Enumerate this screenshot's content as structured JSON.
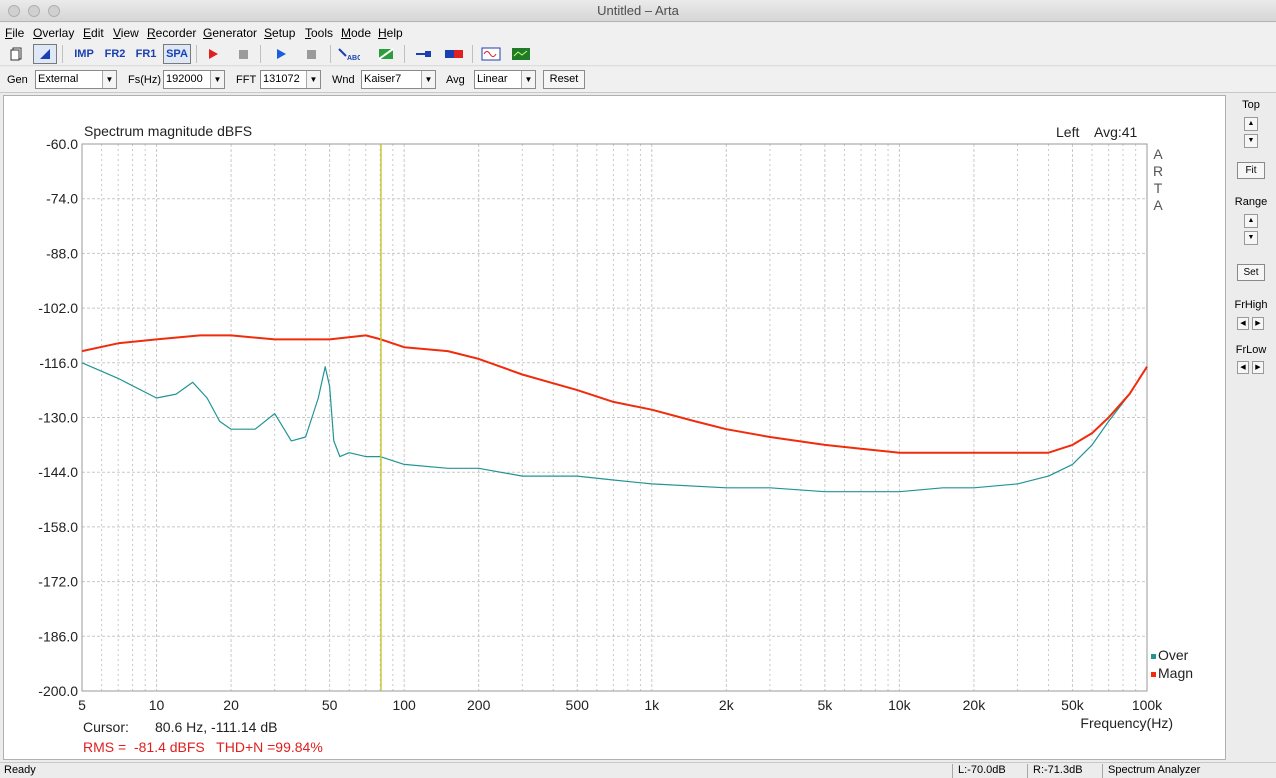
{
  "window": {
    "title": "Untitled – Arta"
  },
  "menu": [
    "File",
    "Overlay",
    "Edit",
    "View",
    "Recorder",
    "Generator",
    "Setup",
    "Tools",
    "Mode",
    "Help"
  ],
  "toolbar": {
    "buttons": [
      {
        "name": "new-file-button",
        "label": "",
        "icon": "page-icon"
      },
      {
        "name": "mode-button",
        "label": "",
        "icon": "flag-icon"
      },
      {
        "name": "imp-mode-button",
        "label": "IMP"
      },
      {
        "name": "fr2-mode-button",
        "label": "FR2"
      },
      {
        "name": "fr1-mode-button",
        "label": "FR1"
      },
      {
        "name": "spa-mode-button",
        "label": "SPA"
      }
    ]
  },
  "options": {
    "gen_label": "Gen",
    "gen_value": "External",
    "fs_label": "Fs(Hz)",
    "fs_value": "192000",
    "fft_label": "FFT",
    "fft_value": "131072",
    "wnd_label": "Wnd",
    "wnd_value": "Kaiser7",
    "avg_label": "Avg",
    "avg_value": "Linear",
    "reset_label": "Reset"
  },
  "plot": {
    "title": "Spectrum magnitude dBFS",
    "channel": "Left",
    "avg": "Avg:41",
    "watermark": [
      "A",
      "R",
      "T",
      "A"
    ],
    "cursor_label": "Cursor:",
    "cursor_value": "80.6 Hz, -111.14 dB",
    "rms_line": "RMS =  -81.4 dBFS   THD+N =99.84%",
    "colors": {
      "over": "#229494",
      "magn": "#f02c0c",
      "cursor": "#c8c832",
      "grid": "#c8c8c8"
    }
  },
  "chart_data": {
    "type": "line",
    "title": "Spectrum magnitude dBFS",
    "xlabel": "Frequency(Hz)",
    "ylabel": "",
    "xscale": "log",
    "xlim": [
      5,
      100000
    ],
    "ylim": [
      -200,
      -60
    ],
    "x_tick_labels": [
      "5",
      "10",
      "20",
      "50",
      "100",
      "200",
      "500",
      "1k",
      "2k",
      "5k",
      "10k",
      "20k",
      "50k",
      "100k"
    ],
    "x_ticks": [
      5,
      10,
      20,
      50,
      100,
      200,
      500,
      1000,
      2000,
      5000,
      10000,
      20000,
      50000,
      100000
    ],
    "y_tick_labels": [
      "-60.0",
      "-74.0",
      "-88.0",
      "-102.0",
      "-116.0",
      "-130.0",
      "-144.0",
      "-158.0",
      "-172.0",
      "-186.0",
      "-200.0"
    ],
    "y_ticks": [
      -60,
      -74,
      -88,
      -102,
      -116,
      -130,
      -144,
      -158,
      -172,
      -186,
      -200
    ],
    "grid": true,
    "legend_position": "bottom-right",
    "cursor_hz": 80.6,
    "series": [
      {
        "name": "Over",
        "color": "#229494",
        "x": [
          5,
          7,
          10,
          12,
          14,
          16,
          18,
          20,
          25,
          30,
          35,
          40,
          45,
          48,
          50,
          52,
          55,
          60,
          70,
          80,
          100,
          150,
          200,
          300,
          500,
          700,
          1000,
          2000,
          3000,
          5000,
          7000,
          10000,
          15000,
          20000,
          30000,
          40000,
          50000,
          60000,
          70000,
          85000,
          100000
        ],
        "y": [
          -116,
          -120,
          -125,
          -124,
          -121,
          -125,
          -131,
          -133,
          -133,
          -129,
          -136,
          -135,
          -125,
          -117,
          -122,
          -136,
          -140,
          -139,
          -140,
          -140,
          -142,
          -143,
          -143,
          -145,
          -145,
          -146,
          -147,
          -148,
          -148,
          -149,
          -149,
          -149,
          -148,
          -148,
          -147,
          -145,
          -142,
          -137,
          -131,
          -124,
          -117
        ]
      },
      {
        "name": "Magn",
        "color": "#f02c0c",
        "x": [
          5,
          7,
          10,
          15,
          20,
          30,
          50,
          70,
          80.6,
          100,
          150,
          200,
          300,
          500,
          700,
          1000,
          1500,
          2000,
          3000,
          5000,
          7000,
          10000,
          15000,
          20000,
          30000,
          40000,
          50000,
          60000,
          70000,
          85000,
          100000
        ],
        "y": [
          -113,
          -111,
          -110,
          -109,
          -109,
          -110,
          -110,
          -109,
          -110,
          -112,
          -113,
          -115,
          -119,
          -123,
          -126,
          -128,
          -131,
          -133,
          -135,
          -137,
          -138,
          -139,
          -139,
          -139,
          -139,
          -139,
          -137,
          -134,
          -130,
          -124,
          -117
        ]
      }
    ]
  },
  "right_panel": {
    "top_label": "Top",
    "fit_label": "Fit",
    "range_label": "Range",
    "set_label": "Set",
    "frhigh_label": "FrHigh",
    "frlow_label": "FrLow"
  },
  "status": {
    "ready": "Ready",
    "left_level": "L:-70.0dB",
    "right_level": "R:-71.3dB",
    "mode": "Spectrum Analyzer"
  }
}
